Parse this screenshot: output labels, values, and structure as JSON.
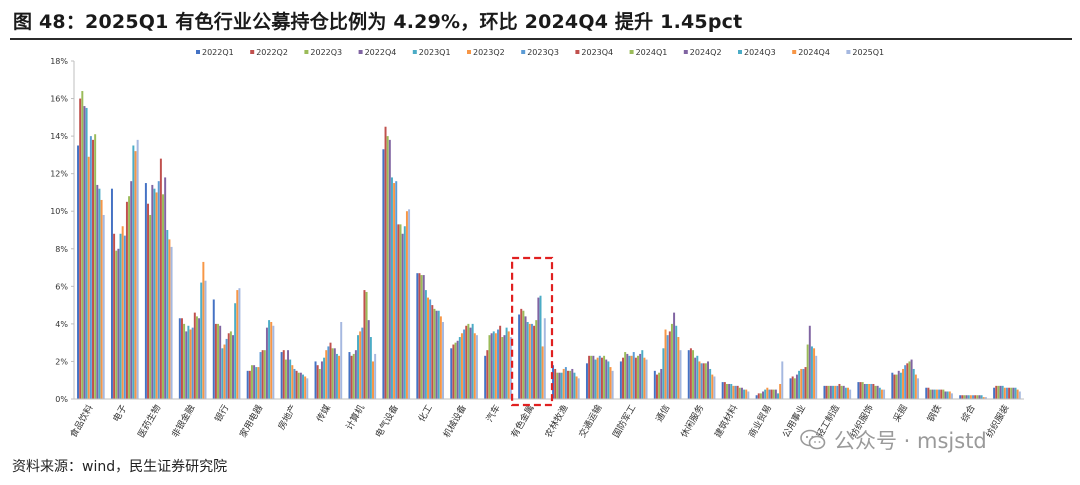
{
  "title": "图 48：2025Q1 有色行业公募持仓比例为 4.29%，环比 2024Q4 提升 1.45pct",
  "source": "资料来源：wind，民生证券研究院",
  "watermark": "公众号 · msjstd",
  "colors": {
    "series": [
      "#4472C4",
      "#C0504D",
      "#9BBB59",
      "#8064A2",
      "#4BACC6",
      "#F79646",
      "#5B9BD5",
      "#C0504D",
      "#9BBB59",
      "#8064A2",
      "#4BACC6",
      "#F79646",
      "#A5B8E0"
    ],
    "highlight_box": "#E02020"
  },
  "chart_data": {
    "type": "bar",
    "ylim": [
      0,
      18
    ],
    "yticks": [
      "0%",
      "2%",
      "4%",
      "6%",
      "8%",
      "10%",
      "12%",
      "14%",
      "16%",
      "18%"
    ],
    "legend_position": "top",
    "grid": false,
    "highlight_category": "有色金属",
    "categories": [
      "食品饮料",
      "电子",
      "医药生物",
      "非银金融",
      "银行",
      "家用电器",
      "房地产",
      "传媒",
      "计算机",
      "电气设备",
      "化工",
      "机械设备",
      "汽车",
      "有色金属",
      "农林牧渔",
      "交通运输",
      "国防军工",
      "通信",
      "休闲服务",
      "建筑材料",
      "商业贸易",
      "公用事业",
      "轻工制造",
      "纺织服饰",
      "采掘",
      "钢铁",
      "综合",
      "纺织服装"
    ],
    "series": [
      {
        "name": "2022Q1",
        "values": [
          13.5,
          11.2,
          11.5,
          4.3,
          5.3,
          1.5,
          2.5,
          2.0,
          2.5,
          13.3,
          6.7,
          2.7,
          2.3,
          4.5,
          1.8,
          1.9,
          2.0,
          1.5,
          2.6,
          0.9,
          0.2,
          1.1,
          0.7,
          0.9,
          1.4,
          0.6,
          0.2,
          0.6
        ]
      },
      {
        "name": "2022Q2",
        "values": [
          16.0,
          8.8,
          10.4,
          4.3,
          4.0,
          1.5,
          2.6,
          1.8,
          2.3,
          14.5,
          6.7,
          2.9,
          2.6,
          4.8,
          1.6,
          2.3,
          2.2,
          1.3,
          2.7,
          0.9,
          0.3,
          1.2,
          0.7,
          0.9,
          1.3,
          0.6,
          0.2,
          0.7
        ]
      },
      {
        "name": "2022Q3",
        "values": [
          16.4,
          7.9,
          9.8,
          4.0,
          4.0,
          1.8,
          2.1,
          1.6,
          2.4,
          14.0,
          6.6,
          3.0,
          3.4,
          4.7,
          1.4,
          2.3,
          2.5,
          1.4,
          2.6,
          0.8,
          0.3,
          1.1,
          0.7,
          0.9,
          1.3,
          0.5,
          0.2,
          0.7
        ]
      },
      {
        "name": "2022Q4",
        "values": [
          15.6,
          8.0,
          11.4,
          3.6,
          3.9,
          1.8,
          2.6,
          2.0,
          2.6,
          13.8,
          6.6,
          3.1,
          3.5,
          4.4,
          1.4,
          2.3,
          2.4,
          1.6,
          2.2,
          0.8,
          0.4,
          1.3,
          0.7,
          0.8,
          1.5,
          0.5,
          0.2,
          0.7
        ]
      },
      {
        "name": "2023Q1",
        "values": [
          15.5,
          8.8,
          11.2,
          3.9,
          2.7,
          1.7,
          2.1,
          2.2,
          3.4,
          11.8,
          5.8,
          3.3,
          3.6,
          4.1,
          1.4,
          2.1,
          2.3,
          2.7,
          2.3,
          0.8,
          0.5,
          1.5,
          0.7,
          0.8,
          1.4,
          0.5,
          0.2,
          0.7
        ]
      },
      {
        "name": "2023Q2",
        "values": [
          12.9,
          9.2,
          11.0,
          3.7,
          2.9,
          1.7,
          1.8,
          2.6,
          3.6,
          11.5,
          5.4,
          3.5,
          3.5,
          4.0,
          1.6,
          2.2,
          2.3,
          3.7,
          2.0,
          0.7,
          0.6,
          1.6,
          0.7,
          0.8,
          1.6,
          0.5,
          0.2,
          0.6
        ]
      },
      {
        "name": "2023Q3",
        "values": [
          14.0,
          8.7,
          11.6,
          3.8,
          3.2,
          2.5,
          1.6,
          2.8,
          3.8,
          11.6,
          5.3,
          3.7,
          3.7,
          4.0,
          1.7,
          2.3,
          2.5,
          3.4,
          1.9,
          0.7,
          0.5,
          1.6,
          0.7,
          0.8,
          1.8,
          0.5,
          0.2,
          0.6
        ]
      },
      {
        "name": "2023Q4",
        "values": [
          13.8,
          10.5,
          12.8,
          4.6,
          3.5,
          2.6,
          1.5,
          3.0,
          5.8,
          9.3,
          5.0,
          3.9,
          3.9,
          3.9,
          1.5,
          2.2,
          2.2,
          3.6,
          1.9,
          0.7,
          0.5,
          1.7,
          0.8,
          0.8,
          1.9,
          0.5,
          0.2,
          0.6
        ]
      },
      {
        "name": "2024Q1",
        "values": [
          14.1,
          10.8,
          10.9,
          4.4,
          3.6,
          2.6,
          1.4,
          2.7,
          5.7,
          9.3,
          4.8,
          4.0,
          3.3,
          4.2,
          1.5,
          2.3,
          2.3,
          4.0,
          1.9,
          0.6,
          0.5,
          2.9,
          0.7,
          0.7,
          2.0,
          0.5,
          0.2,
          0.6
        ]
      },
      {
        "name": "2024Q2",
        "values": [
          11.4,
          11.6,
          11.8,
          4.3,
          3.4,
          3.8,
          1.4,
          2.7,
          4.2,
          8.8,
          4.7,
          3.8,
          3.4,
          5.4,
          1.6,
          2.1,
          2.4,
          4.6,
          2.0,
          0.6,
          0.5,
          3.9,
          0.7,
          0.7,
          2.1,
          0.4,
          0.2,
          0.6
        ]
      },
      {
        "name": "2024Q3",
        "values": [
          11.2,
          13.5,
          9.0,
          6.2,
          5.1,
          4.2,
          1.3,
          2.4,
          3.3,
          9.2,
          4.7,
          4.0,
          3.8,
          5.5,
          1.4,
          2.0,
          2.6,
          3.9,
          1.6,
          0.5,
          0.3,
          2.8,
          0.6,
          0.6,
          1.6,
          0.4,
          0.2,
          0.6
        ]
      },
      {
        "name": "2024Q4",
        "values": [
          10.6,
          13.2,
          8.5,
          7.3,
          5.8,
          4.1,
          1.2,
          2.3,
          2.0,
          10.0,
          4.4,
          3.5,
          3.6,
          2.8,
          1.2,
          1.7,
          2.2,
          3.3,
          1.3,
          0.5,
          0.8,
          2.7,
          0.6,
          0.5,
          1.3,
          0.4,
          0.1,
          0.5
        ]
      },
      {
        "name": "2025Q1",
        "values": [
          9.8,
          13.8,
          8.1,
          6.3,
          5.9,
          3.9,
          1.1,
          4.1,
          2.4,
          10.1,
          4.1,
          3.4,
          3.3,
          4.3,
          1.1,
          1.5,
          2.1,
          2.6,
          1.2,
          0.4,
          2.0,
          2.3,
          0.5,
          0.5,
          1.1,
          0.3,
          0.1,
          0.4
        ]
      }
    ]
  }
}
